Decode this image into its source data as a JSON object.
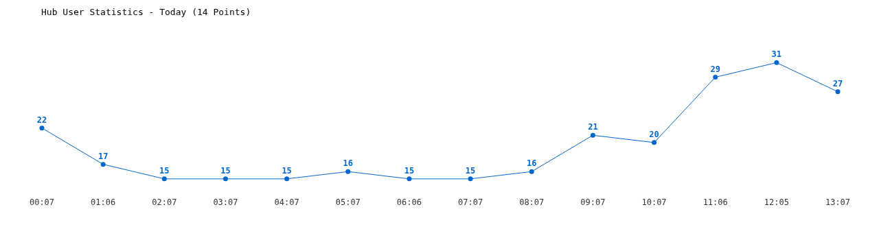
{
  "chart_data": {
    "type": "line",
    "title": "Hub User Statistics - Today (14 Points)",
    "categories": [
      "00:07",
      "01:06",
      "02:07",
      "03:07",
      "04:07",
      "05:07",
      "06:06",
      "07:07",
      "08:07",
      "09:07",
      "10:07",
      "11:06",
      "12:05",
      "13:07"
    ],
    "series": [
      {
        "color": "#0066cc",
        "values": [
          22,
          17,
          15,
          15,
          15,
          16,
          15,
          15,
          16,
          21,
          20,
          29,
          31,
          27
        ]
      }
    ],
    "data_labels": true,
    "marker": "circle",
    "line_style": "solid",
    "grid": false,
    "legend": false
  }
}
